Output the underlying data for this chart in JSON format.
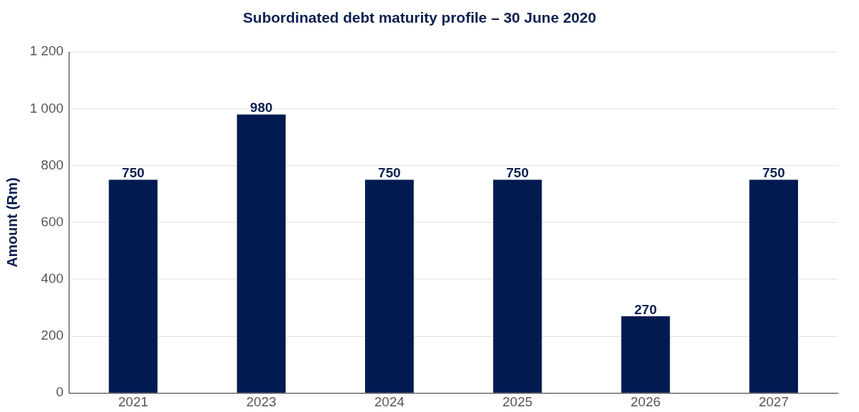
{
  "chart_data": {
    "type": "bar",
    "title": "Subordinated debt maturity profile – 30 June 2020",
    "ylabel": "Amount (Rm)",
    "categories": [
      "2021",
      "2023",
      "2024",
      "2025",
      "2026",
      "2027"
    ],
    "values": [
      750,
      980,
      750,
      750,
      270,
      750
    ],
    "color": "#021a4f",
    "ylim": [
      0,
      1200
    ],
    "yticks": [
      0,
      200,
      400,
      600,
      800,
      {
        "value": 1000,
        "label": "1 000"
      },
      {
        "value": 1200,
        "label": "1 200"
      }
    ],
    "grid": "y",
    "data_labels": true
  }
}
